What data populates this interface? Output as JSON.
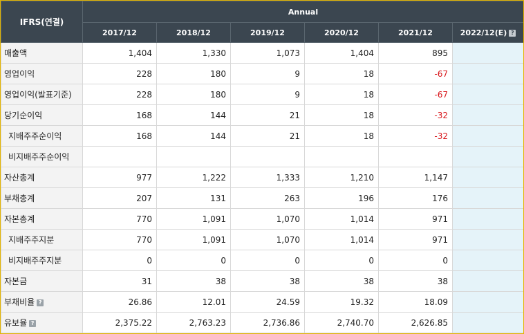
{
  "header": {
    "label": "IFRS(연결)",
    "group": "Annual",
    "years": [
      "2017/12",
      "2018/12",
      "2019/12",
      "2020/12",
      "2021/12"
    ],
    "estimate": "2022/12(E)",
    "help_glyph": "?"
  },
  "rows": [
    {
      "label": "매출액",
      "sub": false,
      "help": false,
      "values": [
        "1,404",
        "1,330",
        "1,073",
        "1,404",
        "895"
      ]
    },
    {
      "label": "영업이익",
      "sub": false,
      "help": false,
      "values": [
        "228",
        "180",
        "9",
        "18",
        "-67"
      ]
    },
    {
      "label": "영업이익(발표기준)",
      "sub": false,
      "help": false,
      "values": [
        "228",
        "180",
        "9",
        "18",
        "-67"
      ]
    },
    {
      "label": "당기순이익",
      "sub": false,
      "help": false,
      "values": [
        "168",
        "144",
        "21",
        "18",
        "-32"
      ]
    },
    {
      "label": "지배주주순이익",
      "sub": true,
      "help": false,
      "values": [
        "168",
        "144",
        "21",
        "18",
        "-32"
      ]
    },
    {
      "label": "비지배주주순이익",
      "sub": true,
      "help": false,
      "values": [
        "",
        "",
        "",
        "",
        ""
      ]
    },
    {
      "label": "자산총계",
      "sub": false,
      "help": false,
      "values": [
        "977",
        "1,222",
        "1,333",
        "1,210",
        "1,147"
      ]
    },
    {
      "label": "부채총계",
      "sub": false,
      "help": false,
      "values": [
        "207",
        "131",
        "263",
        "196",
        "176"
      ]
    },
    {
      "label": "자본총계",
      "sub": false,
      "help": false,
      "values": [
        "770",
        "1,091",
        "1,070",
        "1,014",
        "971"
      ]
    },
    {
      "label": "지배주주지분",
      "sub": true,
      "help": false,
      "values": [
        "770",
        "1,091",
        "1,070",
        "1,014",
        "971"
      ]
    },
    {
      "label": "비지배주주지분",
      "sub": true,
      "help": false,
      "values": [
        "0",
        "0",
        "0",
        "0",
        "0"
      ]
    },
    {
      "label": "자본금",
      "sub": false,
      "help": false,
      "values": [
        "31",
        "38",
        "38",
        "38",
        "38"
      ]
    },
    {
      "label": "부채비율",
      "sub": false,
      "help": true,
      "values": [
        "26.86",
        "12.01",
        "24.59",
        "19.32",
        "18.09"
      ]
    },
    {
      "label": "유보율",
      "sub": false,
      "help": true,
      "values": [
        "2,375.22",
        "2,763.23",
        "2,736.86",
        "2,740.70",
        "2,626.85"
      ]
    }
  ],
  "colors": {
    "header_bg": "#3b4650",
    "estimate_bg": "#e5f3f9",
    "negative": "#d8161b",
    "frame": "#e3b400"
  }
}
